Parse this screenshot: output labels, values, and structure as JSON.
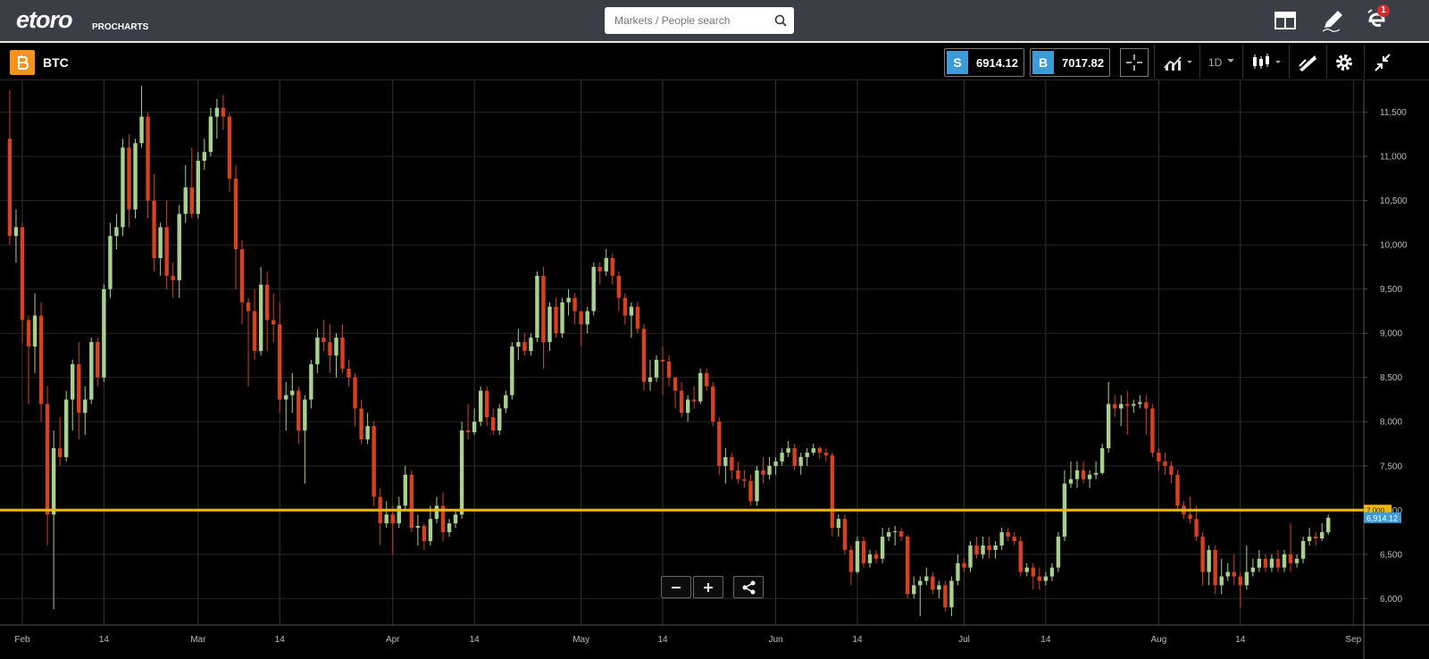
{
  "header": {
    "logo": "etoro",
    "logo_sub": "PROCHARTS",
    "search_placeholder": "Markets / People search",
    "notification_count": 1
  },
  "toolbar": {
    "instrument": "BTC",
    "sell_label": "S",
    "sell_price": 6914.12,
    "buy_label": "B",
    "buy_price": 7017.82,
    "interval": "1D"
  },
  "chart_data": {
    "type": "candlestick",
    "categories": [
      null,
      null,
      "Feb",
      null,
      null,
      null,
      null,
      null,
      null,
      null,
      null,
      null,
      null,
      null,
      null,
      "14",
      null,
      null,
      null,
      null,
      null,
      null,
      null,
      null,
      null,
      null,
      null,
      null,
      null,
      null,
      "Mar",
      null,
      null,
      null,
      null,
      null,
      null,
      null,
      null,
      null,
      null,
      null,
      null,
      "14",
      null,
      null,
      null,
      null,
      null,
      null,
      null,
      null,
      null,
      null,
      null,
      null,
      null,
      null,
      null,
      null,
      null,
      "Apr",
      null,
      null,
      null,
      null,
      null,
      null,
      null,
      null,
      null,
      null,
      null,
      null,
      "14",
      null,
      null,
      null,
      null,
      null,
      null,
      null,
      null,
      null,
      null,
      null,
      null,
      null,
      null,
      null,
      null,
      "May",
      null,
      null,
      null,
      null,
      null,
      null,
      null,
      null,
      null,
      null,
      null,
      null,
      "14",
      null,
      null,
      null,
      null,
      null,
      null,
      null,
      null,
      null,
      null,
      null,
      null,
      null,
      null,
      null,
      null,
      null,
      "Jun",
      null,
      null,
      null,
      null,
      null,
      null,
      null,
      null,
      null,
      null,
      null,
      null,
      "14",
      null,
      null,
      null,
      null,
      null,
      null,
      null,
      null,
      null,
      null,
      null,
      null,
      null,
      null,
      null,
      null,
      "Jul",
      null,
      null,
      null,
      null,
      null,
      null,
      null,
      null,
      null,
      null,
      null,
      null,
      "14",
      null,
      null,
      null,
      null,
      null,
      null,
      null,
      null,
      null,
      null,
      null,
      null,
      null,
      null,
      null,
      null,
      null,
      "Aug",
      null,
      null,
      null,
      null,
      null,
      null,
      null,
      null,
      null,
      null,
      null,
      null,
      "14",
      null,
      null,
      null,
      null,
      null,
      null,
      null,
      null,
      null,
      null,
      null,
      null,
      null,
      null,
      null,
      null,
      null,
      "Sep"
    ],
    "open": [
      11200,
      10100,
      10200,
      9150,
      8850,
      9200,
      8200,
      6950,
      7700,
      7600,
      8250,
      8650,
      8100,
      8250,
      8900,
      8500,
      9500,
      10100,
      10200,
      11100,
      10400,
      11150,
      11450,
      10500,
      9850,
      10200,
      9650,
      9600,
      10350,
      10650,
      10350,
      10950,
      11050,
      11450,
      11550,
      11450,
      10750,
      9950,
      9350,
      9250,
      8800,
      9550,
      9150,
      9100,
      8250,
      8300,
      8350,
      7900,
      8250,
      8650,
      8950,
      8900,
      8750,
      8950,
      8600,
      8500,
      8150,
      7800,
      7950,
      7150,
      6850,
      6950,
      6850,
      7050,
      7400,
      6800,
      6820,
      6650,
      6900,
      7050,
      6750,
      6850,
      6950,
      7900,
      7880,
      8000,
      8350,
      8050,
      7900,
      8150,
      8300,
      8850,
      8900,
      8800,
      8950,
      9650,
      8900,
      9300,
      9000,
      9350,
      9400,
      9250,
      9100,
      9250,
      9750,
      9700,
      9850,
      9650,
      9400,
      9200,
      9300,
      9050,
      8450,
      8500,
      8700,
      8680,
      8500,
      8350,
      8100,
      8250,
      8230,
      8550,
      8400,
      8000,
      7500,
      7600,
      7450,
      7350,
      7330,
      7100,
      7450,
      7400,
      7500,
      7550,
      7650,
      7700,
      7500,
      7600,
      7650,
      7700,
      7650,
      7620,
      6800,
      6900,
      6550,
      6300,
      6650,
      6400,
      6500,
      6450,
      6700,
      6750,
      6760,
      6700,
      6050,
      6150,
      6200,
      6250,
      6100,
      6150,
      5900,
      6200,
      6400,
      6350,
      6600,
      6500,
      6600,
      6550,
      6600,
      6750,
      6700,
      6650,
      6300,
      6350,
      6250,
      6200,
      6250,
      6350,
      6700,
      7300,
      7350,
      7450,
      7350,
      7400,
      7420,
      7700,
      8200,
      8150,
      8200,
      8180,
      8200,
      8220,
      8150,
      7650,
      7550,
      7500,
      7400,
      7050,
      6950,
      6900,
      6700,
      6300,
      6550,
      6150,
      6250,
      6300,
      6250,
      6150,
      6300,
      6350,
      6450,
      6350,
      6450,
      6350,
      6500,
      6400,
      6450,
      6650,
      6700,
      6680,
      6750,
      null,
      null,
      null,
      null
    ],
    "high": [
      11750,
      10400,
      10250,
      9200,
      9450,
      9350,
      8400,
      7900,
      8050,
      8350,
      8700,
      8900,
      8400,
      8950,
      8950,
      9550,
      10250,
      10350,
      11200,
      11250,
      11200,
      11800,
      11500,
      10800,
      10250,
      10500,
      9800,
      10450,
      10900,
      11100,
      11050,
      11200,
      11550,
      11650,
      11700,
      11500,
      10900,
      10050,
      9400,
      9500,
      9750,
      9700,
      9450,
      9350,
      8450,
      8550,
      8400,
      8300,
      8700,
      9050,
      9150,
      9100,
      9000,
      9100,
      8700,
      8550,
      8250,
      8100,
      8000,
      7250,
      7100,
      7050,
      7150,
      7500,
      7450,
      6950,
      6850,
      7050,
      7150,
      7200,
      6900,
      7000,
      8000,
      8200,
      8150,
      8400,
      8400,
      8150,
      8200,
      8350,
      8900,
      9050,
      9000,
      9000,
      9700,
      9750,
      9350,
      9400,
      9400,
      9500,
      9450,
      9250,
      9300,
      9800,
      9800,
      9950,
      9900,
      9700,
      9450,
      9350,
      9350,
      9100,
      8700,
      8750,
      8850,
      8750,
      8500,
      8450,
      8300,
      8400,
      8600,
      8600,
      8450,
      8050,
      7700,
      7650,
      7550,
      7450,
      7400,
      7500,
      7600,
      7600,
      7600,
      7700,
      7780,
      7750,
      7650,
      7700,
      7750,
      7720,
      7700,
      7650,
      6950,
      6950,
      6600,
      6700,
      6700,
      6550,
      6550,
      6800,
      6800,
      6820,
      6800,
      6720,
      6250,
      6250,
      6350,
      6300,
      6200,
      6200,
      6250,
      6500,
      6450,
      6650,
      6700,
      6700,
      6700,
      6650,
      6800,
      6800,
      6750,
      6700,
      6400,
      6400,
      6350,
      6300,
      6400,
      6750,
      7450,
      7550,
      7550,
      7550,
      7450,
      7550,
      7750,
      8450,
      8300,
      8300,
      8350,
      8250,
      8300,
      8300,
      8200,
      7700,
      7650,
      7550,
      7450,
      7100,
      7150,
      7050,
      6750,
      6600,
      6600,
      6450,
      6400,
      6500,
      6300,
      6600,
      6450,
      6550,
      6500,
      6500,
      6550,
      6550,
      6850,
      6500,
      6700,
      6800,
      6750,
      6850,
      6950,
      null,
      null,
      null,
      null
    ],
    "low": [
      10000,
      9800,
      8900,
      8200,
      8550,
      8000,
      6600,
      5880,
      7500,
      7550,
      7900,
      7800,
      7850,
      8200,
      8400,
      8450,
      9400,
      9950,
      10100,
      10200,
      10300,
      11100,
      10300,
      9700,
      9650,
      9500,
      9400,
      9400,
      10250,
      10300,
      10300,
      10850,
      11000,
      11200,
      11300,
      10600,
      9500,
      9100,
      8400,
      8700,
      8750,
      8800,
      8900,
      8100,
      7900,
      8100,
      7750,
      7300,
      8150,
      8550,
      8800,
      8550,
      8500,
      8550,
      8400,
      7950,
      7750,
      7750,
      7050,
      6600,
      6800,
      6500,
      6800,
      7000,
      6750,
      6600,
      6550,
      6600,
      6850,
      6650,
      6700,
      6800,
      6900,
      7800,
      7850,
      7950,
      7950,
      7850,
      7850,
      8100,
      8250,
      8700,
      8750,
      8750,
      8900,
      8600,
      8800,
      8950,
      8950,
      9200,
      9100,
      8850,
      9000,
      9200,
      9550,
      9650,
      9550,
      9250,
      9100,
      8950,
      9000,
      8350,
      8350,
      8450,
      8300,
      8400,
      8150,
      8050,
      8000,
      8150,
      8200,
      8350,
      7950,
      7400,
      7300,
      7350,
      7300,
      7250,
      7050,
      7050,
      7300,
      7350,
      7400,
      7500,
      7600,
      7450,
      7400,
      7500,
      7620,
      7580,
      7550,
      6700,
      6700,
      6500,
      6150,
      6280,
      6350,
      6350,
      6400,
      6400,
      6650,
      6600,
      6650,
      6000,
      6000,
      5800,
      6150,
      6050,
      6000,
      5850,
      5800,
      6150,
      6300,
      6300,
      6450,
      6450,
      6450,
      6450,
      6550,
      6650,
      6600,
      6250,
      6250,
      6100,
      6100,
      6150,
      6200,
      6300,
      6650,
      7250,
      7250,
      7300,
      7250,
      7350,
      7400,
      7650,
      8050,
      7950,
      7850,
      8100,
      8150,
      7850,
      7600,
      7450,
      7400,
      7300,
      7000,
      6900,
      6850,
      6650,
      6150,
      6150,
      6050,
      6050,
      6200,
      6150,
      5900,
      6100,
      6250,
      6300,
      6300,
      6300,
      6300,
      6300,
      6300,
      6350,
      6400,
      6600,
      6600,
      6650,
      6720,
      null,
      null,
      null,
      null
    ],
    "close": [
      10100,
      10200,
      9150,
      8850,
      9200,
      8200,
      6950,
      7700,
      7600,
      8250,
      8650,
      8100,
      8250,
      8900,
      8500,
      9500,
      10100,
      10200,
      11100,
      10400,
      11150,
      11450,
      10500,
      9850,
      10200,
      9650,
      9600,
      10350,
      10650,
      10350,
      10950,
      11050,
      11450,
      11550,
      11450,
      10750,
      9950,
      9350,
      9250,
      8800,
      9550,
      9150,
      9100,
      8250,
      8300,
      8350,
      7900,
      8250,
      8650,
      8950,
      8900,
      8750,
      8950,
      8600,
      8500,
      8150,
      7800,
      7950,
      7150,
      6850,
      6950,
      6850,
      7050,
      7400,
      6800,
      6820,
      6650,
      6900,
      7050,
      6750,
      6850,
      6950,
      7900,
      7880,
      8000,
      8350,
      8050,
      7900,
      8150,
      8300,
      8850,
      8900,
      8800,
      8950,
      9650,
      8900,
      9300,
      9000,
      9350,
      9400,
      9250,
      9100,
      9250,
      9750,
      9700,
      9850,
      9650,
      9400,
      9200,
      9300,
      9050,
      8450,
      8500,
      8700,
      8680,
      8500,
      8350,
      8100,
      8250,
      8230,
      8550,
      8400,
      8000,
      7500,
      7600,
      7450,
      7350,
      7330,
      7100,
      7450,
      7400,
      7500,
      7550,
      7650,
      7700,
      7500,
      7600,
      7650,
      7700,
      7650,
      7620,
      6800,
      6900,
      6550,
      6300,
      6650,
      6400,
      6500,
      6450,
      6700,
      6750,
      6760,
      6700,
      6050,
      6150,
      6200,
      6250,
      6100,
      6150,
      5900,
      6200,
      6400,
      6350,
      6600,
      6500,
      6600,
      6550,
      6600,
      6750,
      6700,
      6650,
      6300,
      6350,
      6250,
      6200,
      6250,
      6350,
      6700,
      7300,
      7350,
      7450,
      7350,
      7400,
      7420,
      7700,
      8200,
      8150,
      8200,
      8180,
      8200,
      8220,
      8150,
      7650,
      7550,
      7500,
      7400,
      7050,
      6950,
      6900,
      6700,
      6300,
      6550,
      6150,
      6250,
      6300,
      6250,
      6150,
      6300,
      6350,
      6450,
      6350,
      6450,
      6350,
      6500,
      6400,
      6450,
      6650,
      6700,
      6680,
      6750,
      6914.12,
      null,
      null,
      null,
      null
    ],
    "up_color": "#a9d08e",
    "down_color": "#d8401e",
    "ylim": [
      5700,
      11860
    ],
    "yticks": [
      {
        "value": 6000,
        "label": "6,000"
      },
      {
        "value": 6500,
        "label": "6,500"
      },
      {
        "value": 7000,
        "label": "7,000"
      },
      {
        "value": 7500,
        "label": "7,500"
      },
      {
        "value": 8000,
        "label": "8,000"
      },
      {
        "value": 8500,
        "label": "8,500"
      },
      {
        "value": 9000,
        "label": "9,000"
      },
      {
        "value": 9500,
        "label": "9,500"
      },
      {
        "value": 10000,
        "label": "10,000"
      },
      {
        "value": 10500,
        "label": "10,500"
      },
      {
        "value": 11000,
        "label": "11,000"
      },
      {
        "value": 11500,
        "label": "11,500"
      }
    ],
    "grid": true,
    "reference_line": {
      "value": 7000,
      "label": "7,000",
      "color": "#f2b705"
    },
    "last_price": {
      "value": 6914.12,
      "label": "6,914.12",
      "color": "#3d9bd8"
    }
  }
}
